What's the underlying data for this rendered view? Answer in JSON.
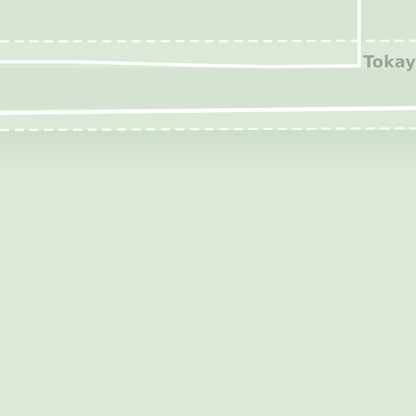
{
  "map": {
    "labels": {
      "street_name": "Tokay"
    },
    "colors": {
      "land": "#dbe9d6",
      "road_line": "#ffffff",
      "label_text": "#9aa39a"
    }
  }
}
